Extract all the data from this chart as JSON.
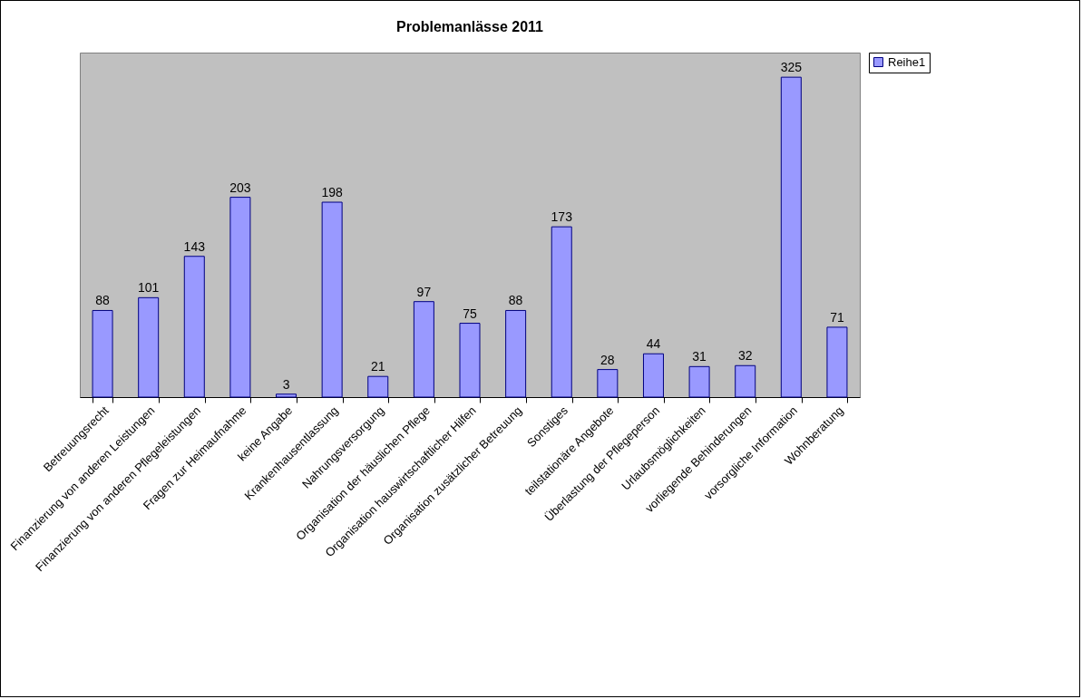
{
  "chart_data": {
    "type": "bar",
    "title": "Problemanlässe 2011",
    "categories": [
      "Betreuungsrecht",
      "Finanzierung von anderen Leistungen",
      "Finanzierung von anderen Pflegeleistungen",
      "Fragen zur Heimaufnahme",
      "keine Angabe",
      "Krankenhausentlassung",
      "Nahrungsversorgung",
      "Organisation der häuslichen Pflege",
      "Organisation hauswirtschaftlicher Hilfen",
      "Organisation zusätzlicher Betreuung",
      "Sonstiges",
      "teilstationäre Angebote",
      "Überlastung der Pflegeperson",
      "Urlaubsmöglichkeiten",
      "vorliegende Behinderungen",
      "vorsorgliche Information",
      "Wohnberatung"
    ],
    "series": [
      {
        "name": "Reihe1",
        "color": "#9999ff",
        "values": [
          88,
          101,
          143,
          203,
          3,
          198,
          21,
          97,
          75,
          88,
          173,
          28,
          44,
          31,
          32,
          325,
          71
        ]
      }
    ],
    "data_labels": true,
    "legend": "right",
    "grid": false
  }
}
